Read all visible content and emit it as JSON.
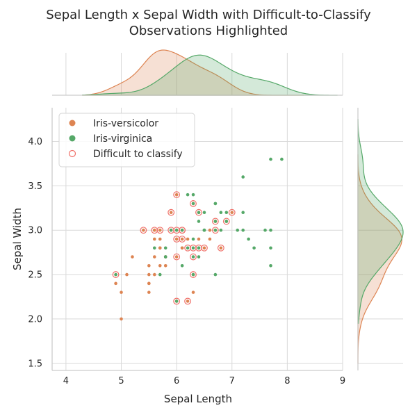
{
  "chart_data": {
    "type": "scatter",
    "title_lines": [
      "Sepal Length x Sepal Width with Difficult-to-Classify",
      "Observations Highlighted"
    ],
    "xlabel": "Sepal Length",
    "ylabel": "Sepal Width",
    "xlim": [
      3.75,
      9.0
    ],
    "ylim": [
      1.42,
      4.38
    ],
    "xticks": [
      4,
      5,
      6,
      7,
      8,
      9
    ],
    "yticks": [
      1.5,
      2.0,
      2.5,
      3.0,
      3.5,
      4.0
    ],
    "xtick_labels": [
      "4",
      "5",
      "6",
      "7",
      "8",
      "9"
    ],
    "ytick_labels": [
      "1.5",
      "2.0",
      "2.5",
      "3.0",
      "3.5",
      "4.0"
    ],
    "grid": true,
    "legend_position": "top-left",
    "colors": {
      "versicolor": "#dd8452",
      "virginica": "#55a868",
      "difficult": "#f0716a",
      "grid": "#d9d9d9",
      "spine": "#cccccc"
    },
    "series": [
      {
        "name": "Iris-versicolor",
        "points": [
          [
            7.0,
            3.2
          ],
          [
            6.4,
            3.2
          ],
          [
            6.9,
            3.1
          ],
          [
            5.5,
            2.3
          ],
          [
            6.5,
            2.8
          ],
          [
            5.7,
            2.8
          ],
          [
            6.3,
            3.3
          ],
          [
            4.9,
            2.4
          ],
          [
            6.6,
            2.9
          ],
          [
            5.2,
            2.7
          ],
          [
            5.0,
            2.0
          ],
          [
            5.9,
            3.0
          ],
          [
            6.0,
            2.2
          ],
          [
            6.1,
            2.9
          ],
          [
            5.6,
            2.9
          ],
          [
            6.7,
            3.1
          ],
          [
            5.6,
            3.0
          ],
          [
            5.8,
            2.7
          ],
          [
            6.2,
            2.2
          ],
          [
            5.6,
            2.5
          ],
          [
            5.9,
            3.2
          ],
          [
            6.1,
            2.8
          ],
          [
            6.3,
            2.5
          ],
          [
            6.1,
            2.8
          ],
          [
            6.4,
            2.9
          ],
          [
            6.6,
            3.0
          ],
          [
            6.8,
            2.8
          ],
          [
            6.7,
            3.0
          ],
          [
            6.0,
            2.9
          ],
          [
            5.7,
            2.6
          ],
          [
            5.5,
            2.4
          ],
          [
            5.5,
            2.4
          ],
          [
            5.8,
            2.7
          ],
          [
            6.0,
            2.7
          ],
          [
            5.4,
            3.0
          ],
          [
            6.0,
            3.4
          ],
          [
            6.7,
            3.1
          ],
          [
            6.3,
            2.3
          ],
          [
            5.6,
            3.0
          ],
          [
            5.5,
            2.5
          ],
          [
            5.5,
            2.6
          ],
          [
            6.1,
            3.0
          ],
          [
            5.8,
            2.6
          ],
          [
            5.0,
            2.3
          ],
          [
            5.6,
            2.7
          ],
          [
            5.7,
            3.0
          ],
          [
            5.7,
            2.9
          ],
          [
            6.2,
            2.9
          ],
          [
            5.1,
            2.5
          ],
          [
            5.7,
            2.8
          ]
        ]
      },
      {
        "name": "Iris-virginica",
        "points": [
          [
            6.3,
            3.3
          ],
          [
            5.8,
            2.7
          ],
          [
            7.1,
            3.0
          ],
          [
            6.3,
            2.9
          ],
          [
            6.5,
            3.0
          ],
          [
            7.6,
            3.0
          ],
          [
            4.9,
            2.5
          ],
          [
            7.3,
            2.9
          ],
          [
            6.7,
            2.5
          ],
          [
            7.2,
            3.6
          ],
          [
            6.5,
            3.2
          ],
          [
            6.4,
            2.7
          ],
          [
            6.8,
            3.0
          ],
          [
            5.7,
            2.5
          ],
          [
            5.8,
            2.8
          ],
          [
            6.4,
            3.2
          ],
          [
            6.5,
            3.0
          ],
          [
            7.7,
            3.8
          ],
          [
            7.7,
            2.6
          ],
          [
            6.0,
            2.2
          ],
          [
            6.9,
            3.2
          ],
          [
            5.6,
            2.8
          ],
          [
            7.7,
            2.8
          ],
          [
            6.3,
            2.7
          ],
          [
            6.7,
            3.3
          ],
          [
            7.2,
            3.2
          ],
          [
            6.2,
            2.8
          ],
          [
            6.1,
            3.0
          ],
          [
            6.4,
            2.8
          ],
          [
            7.2,
            3.0
          ],
          [
            7.4,
            2.8
          ],
          [
            7.9,
            3.8
          ],
          [
            6.4,
            2.8
          ],
          [
            6.3,
            2.8
          ],
          [
            6.1,
            2.6
          ],
          [
            7.7,
            3.0
          ],
          [
            6.3,
            3.4
          ],
          [
            6.4,
            3.1
          ],
          [
            6.0,
            3.0
          ],
          [
            6.9,
            3.1
          ],
          [
            6.7,
            3.1
          ],
          [
            6.9,
            3.1
          ],
          [
            5.8,
            2.7
          ],
          [
            6.8,
            3.2
          ],
          [
            6.7,
            3.3
          ],
          [
            6.7,
            3.0
          ],
          [
            6.3,
            2.5
          ],
          [
            6.5,
            3.0
          ],
          [
            6.2,
            3.4
          ],
          [
            5.9,
            3.0
          ]
        ]
      },
      {
        "name": "Difficult to classify",
        "points": [
          [
            7.0,
            3.2
          ],
          [
            6.4,
            3.2
          ],
          [
            6.9,
            3.1
          ],
          [
            6.5,
            2.8
          ],
          [
            6.3,
            3.3
          ],
          [
            4.9,
            2.5
          ],
          [
            5.9,
            3.2
          ],
          [
            6.0,
            2.2
          ],
          [
            6.2,
            2.2
          ],
          [
            6.1,
            2.9
          ],
          [
            6.7,
            3.1
          ],
          [
            6.7,
            3.0
          ],
          [
            6.8,
            2.8
          ],
          [
            6.0,
            2.7
          ],
          [
            5.4,
            3.0
          ],
          [
            6.0,
            3.4
          ],
          [
            5.6,
            3.0
          ],
          [
            6.1,
            3.0
          ],
          [
            6.0,
            2.9
          ],
          [
            6.3,
            2.5
          ],
          [
            6.3,
            2.8
          ],
          [
            6.2,
            2.8
          ],
          [
            6.3,
            2.7
          ],
          [
            5.9,
            3.0
          ],
          [
            6.0,
            3.0
          ],
          [
            6.4,
            2.8
          ],
          [
            5.7,
            3.0
          ],
          [
            6.1,
            3.0
          ]
        ]
      }
    ],
    "legend": [
      {
        "label": "Iris-versicolor",
        "marker": "filled",
        "color": "#dd8452"
      },
      {
        "label": "Iris-virginica",
        "marker": "filled",
        "color": "#55a868"
      },
      {
        "label": "Difficult to classify",
        "marker": "hollow",
        "color": "#f0716a"
      }
    ]
  }
}
